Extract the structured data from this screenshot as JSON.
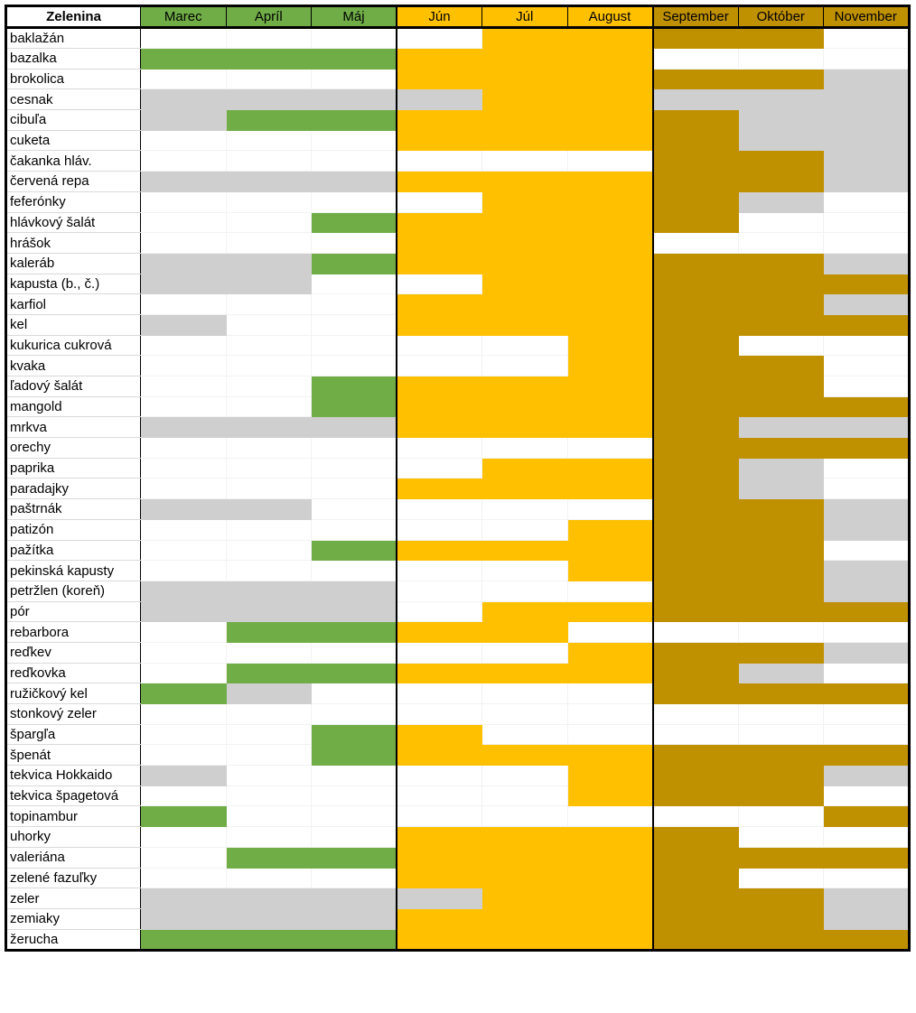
{
  "colors": {
    "E": "#ffffff",
    "G": "#d0cfcf",
    "S": "#70ad47",
    "H": "#ffc000",
    "A": "#bf9000",
    "header_name": "#ffffff",
    "header_spring": "#70ad47",
    "header_summer": "#ffc000",
    "header_autumn": "#bf9000"
  },
  "header": {
    "name_label": "Zelenina",
    "months": [
      "Marec",
      "Apríl",
      "Máj",
      "Jún",
      "Júl",
      "August",
      "September",
      "Október",
      "November"
    ]
  },
  "rows": [
    {
      "name": "baklažán",
      "cells": [
        "E",
        "E",
        "E",
        "E",
        "H",
        "H",
        "A",
        "A",
        "E"
      ]
    },
    {
      "name": "bazalka",
      "cells": [
        "S",
        "S",
        "S",
        "H",
        "H",
        "H",
        "E",
        "E",
        "E"
      ]
    },
    {
      "name": "brokolica",
      "cells": [
        "E",
        "E",
        "E",
        "H",
        "H",
        "H",
        "A",
        "A",
        "G"
      ]
    },
    {
      "name": "cesnak",
      "cells": [
        "G",
        "G",
        "G",
        "G",
        "H",
        "H",
        "G",
        "G",
        "G"
      ]
    },
    {
      "name": "cibuľa",
      "cells": [
        "G",
        "S",
        "S",
        "H",
        "H",
        "H",
        "A",
        "G",
        "G"
      ]
    },
    {
      "name": "cuketa",
      "cells": [
        "E",
        "E",
        "E",
        "H",
        "H",
        "H",
        "A",
        "G",
        "G"
      ]
    },
    {
      "name": "čakanka hláv.",
      "cells": [
        "E",
        "E",
        "E",
        "E",
        "E",
        "E",
        "A",
        "A",
        "G"
      ]
    },
    {
      "name": "červená repa",
      "cells": [
        "G",
        "G",
        "G",
        "H",
        "H",
        "H",
        "A",
        "A",
        "G"
      ]
    },
    {
      "name": "feferónky",
      "cells": [
        "E",
        "E",
        "E",
        "E",
        "H",
        "H",
        "A",
        "G",
        "E"
      ]
    },
    {
      "name": "hlávkový šalát",
      "cells": [
        "E",
        "E",
        "S",
        "H",
        "H",
        "H",
        "A",
        "E",
        "E"
      ]
    },
    {
      "name": "hrášok",
      "cells": [
        "E",
        "E",
        "E",
        "H",
        "H",
        "H",
        "E",
        "E",
        "E"
      ]
    },
    {
      "name": "kaleráb",
      "cells": [
        "G",
        "G",
        "S",
        "H",
        "H",
        "H",
        "A",
        "A",
        "G"
      ]
    },
    {
      "name": "kapusta (b., č.)",
      "cells": [
        "G",
        "G",
        "E",
        "E",
        "H",
        "H",
        "A",
        "A",
        "A"
      ]
    },
    {
      "name": "karfiol",
      "cells": [
        "E",
        "E",
        "E",
        "H",
        "H",
        "H",
        "A",
        "A",
        "G"
      ]
    },
    {
      "name": "kel",
      "cells": [
        "G",
        "E",
        "E",
        "H",
        "H",
        "H",
        "A",
        "A",
        "A"
      ]
    },
    {
      "name": "kukurica cukrová",
      "cells": [
        "E",
        "E",
        "E",
        "E",
        "E",
        "H",
        "A",
        "E",
        "E"
      ]
    },
    {
      "name": "kvaka",
      "cells": [
        "E",
        "E",
        "E",
        "E",
        "E",
        "H",
        "A",
        "A",
        "E"
      ]
    },
    {
      "name": "ľadový šalát",
      "cells": [
        "E",
        "E",
        "S",
        "H",
        "H",
        "H",
        "A",
        "A",
        "E"
      ]
    },
    {
      "name": "mangold",
      "cells": [
        "E",
        "E",
        "S",
        "H",
        "H",
        "H",
        "A",
        "A",
        "A"
      ]
    },
    {
      "name": "mrkva",
      "cells": [
        "G",
        "G",
        "G",
        "H",
        "H",
        "H",
        "A",
        "G",
        "G"
      ]
    },
    {
      "name": "orechy",
      "cells": [
        "E",
        "E",
        "E",
        "E",
        "E",
        "E",
        "A",
        "A",
        "A"
      ]
    },
    {
      "name": "paprika",
      "cells": [
        "E",
        "E",
        "E",
        "E",
        "H",
        "H",
        "A",
        "G",
        "E"
      ]
    },
    {
      "name": "paradajky",
      "cells": [
        "E",
        "E",
        "E",
        "H",
        "H",
        "H",
        "A",
        "G",
        "E"
      ]
    },
    {
      "name": "paštrnák",
      "cells": [
        "G",
        "G",
        "E",
        "E",
        "E",
        "E",
        "A",
        "A",
        "G"
      ]
    },
    {
      "name": "patizón",
      "cells": [
        "E",
        "E",
        "E",
        "E",
        "E",
        "H",
        "A",
        "A",
        "G"
      ]
    },
    {
      "name": "pažítka",
      "cells": [
        "E",
        "E",
        "S",
        "H",
        "H",
        "H",
        "A",
        "A",
        "E"
      ]
    },
    {
      "name": "pekinská kapusty",
      "cells": [
        "E",
        "E",
        "E",
        "E",
        "E",
        "H",
        "A",
        "A",
        "G"
      ]
    },
    {
      "name": "petržlen (koreň)",
      "cells": [
        "G",
        "G",
        "G",
        "E",
        "E",
        "E",
        "A",
        "A",
        "G"
      ]
    },
    {
      "name": "pór",
      "cells": [
        "G",
        "G",
        "G",
        "E",
        "H",
        "H",
        "A",
        "A",
        "A"
      ]
    },
    {
      "name": "rebarbora",
      "cells": [
        "E",
        "S",
        "S",
        "H",
        "H",
        "E",
        "E",
        "E",
        "E"
      ]
    },
    {
      "name": "reďkev",
      "cells": [
        "E",
        "E",
        "E",
        "E",
        "E",
        "H",
        "A",
        "A",
        "G"
      ]
    },
    {
      "name": "reďkovka",
      "cells": [
        "E",
        "S",
        "S",
        "H",
        "H",
        "H",
        "A",
        "G",
        "E"
      ]
    },
    {
      "name": "ružičkový kel",
      "cells": [
        "S",
        "G",
        "E",
        "E",
        "E",
        "E",
        "A",
        "A",
        "A"
      ]
    },
    {
      "name": "stonkový zeler",
      "cells": [
        "E",
        "E",
        "E",
        "E",
        "E",
        "E",
        "E",
        "E",
        "E"
      ]
    },
    {
      "name": "špargľa",
      "cells": [
        "E",
        "E",
        "S",
        "H",
        "E",
        "E",
        "E",
        "E",
        "E"
      ]
    },
    {
      "name": "špenát",
      "cells": [
        "E",
        "E",
        "S",
        "H",
        "H",
        "H",
        "A",
        "A",
        "A"
      ]
    },
    {
      "name": "tekvica Hokkaido",
      "cells": [
        "G",
        "E",
        "E",
        "E",
        "E",
        "H",
        "A",
        "A",
        "G"
      ]
    },
    {
      "name": "tekvica špagetová",
      "cells": [
        "E",
        "E",
        "E",
        "E",
        "E",
        "H",
        "A",
        "A",
        "E"
      ]
    },
    {
      "name": "topinambur",
      "cells": [
        "S",
        "E",
        "E",
        "E",
        "E",
        "E",
        "E",
        "E",
        "A"
      ]
    },
    {
      "name": "uhorky",
      "cells": [
        "E",
        "E",
        "E",
        "H",
        "H",
        "H",
        "A",
        "E",
        "E"
      ]
    },
    {
      "name": "valeriána",
      "cells": [
        "E",
        "S",
        "S",
        "H",
        "H",
        "H",
        "A",
        "A",
        "A"
      ]
    },
    {
      "name": "zelené fazuľky",
      "cells": [
        "E",
        "E",
        "E",
        "H",
        "H",
        "H",
        "A",
        "E",
        "E"
      ]
    },
    {
      "name": "zeler",
      "cells": [
        "G",
        "G",
        "G",
        "G",
        "H",
        "H",
        "A",
        "A",
        "G"
      ]
    },
    {
      "name": "zemiaky",
      "cells": [
        "G",
        "G",
        "G",
        "H",
        "H",
        "H",
        "A",
        "A",
        "G"
      ]
    },
    {
      "name": "žerucha",
      "cells": [
        "S",
        "S",
        "S",
        "H",
        "H",
        "H",
        "A",
        "A",
        "A"
      ]
    }
  ]
}
